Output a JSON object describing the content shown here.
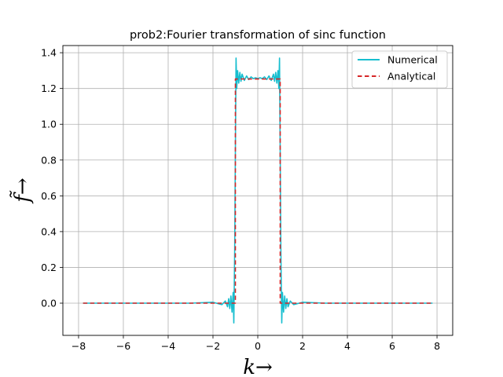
{
  "chart_data": {
    "type": "line",
    "title": "prob2:Fourier transformation of sinc function",
    "xlabel": "k→",
    "ylabel": "f̃→",
    "xlim": [
      -8.7,
      8.7
    ],
    "ylim": [
      -0.18,
      1.44
    ],
    "xticks": [
      -8,
      -6,
      -4,
      -2,
      0,
      2,
      4,
      6,
      8
    ],
    "xtick_labels": [
      "−8",
      "−6",
      "−4",
      "−2",
      "0",
      "2",
      "4",
      "6",
      "8"
    ],
    "yticks": [
      0.0,
      0.2,
      0.4,
      0.6,
      0.8,
      1.0,
      1.2,
      1.4
    ],
    "ytick_labels": [
      "0.0",
      "0.2",
      "0.4",
      "0.6",
      "0.8",
      "1.0",
      "1.2",
      "1.4"
    ],
    "grid": true,
    "legend_position": "upper right",
    "series": [
      {
        "name": "Numerical",
        "color": "#17becf",
        "style": "solid",
        "x": [
          -7.8,
          -3.0,
          -2.0,
          -1.6,
          -1.45,
          -1.35,
          -1.3,
          -1.25,
          -1.2,
          -1.15,
          -1.1,
          -1.07,
          -1.03,
          -1.0,
          -0.97,
          -0.94,
          -0.9,
          -0.85,
          -0.8,
          -0.75,
          -0.7,
          -0.6,
          -0.5,
          -0.4,
          -0.3,
          -0.2,
          -0.1,
          0.0,
          0.1,
          0.2,
          0.3,
          0.4,
          0.5,
          0.6,
          0.7,
          0.75,
          0.8,
          0.85,
          0.9,
          0.94,
          0.97,
          1.0,
          1.03,
          1.07,
          1.1,
          1.15,
          1.2,
          1.25,
          1.3,
          1.35,
          1.45,
          1.6,
          2.0,
          3.0,
          7.8
        ],
        "y": [
          0.0,
          0.0,
          0.005,
          -0.008,
          0.012,
          -0.02,
          0.025,
          -0.03,
          0.04,
          -0.05,
          0.06,
          -0.11,
          0.3,
          0.85,
          1.37,
          1.2,
          1.3,
          1.23,
          1.29,
          1.24,
          1.28,
          1.245,
          1.27,
          1.25,
          1.265,
          1.255,
          1.26,
          1.255,
          1.26,
          1.255,
          1.265,
          1.25,
          1.27,
          1.245,
          1.28,
          1.24,
          1.29,
          1.23,
          1.3,
          1.2,
          1.37,
          0.85,
          0.3,
          -0.11,
          0.06,
          -0.05,
          0.04,
          -0.03,
          0.025,
          -0.02,
          0.012,
          -0.008,
          0.005,
          0.0,
          0.0
        ]
      },
      {
        "name": "Analytical",
        "color": "#d62728",
        "style": "dashed",
        "x": [
          -7.8,
          -1.0,
          -1.0,
          1.0,
          1.0,
          7.8
        ],
        "y": [
          0.0,
          0.0,
          1.2533,
          1.2533,
          0.0,
          0.0
        ]
      }
    ]
  }
}
